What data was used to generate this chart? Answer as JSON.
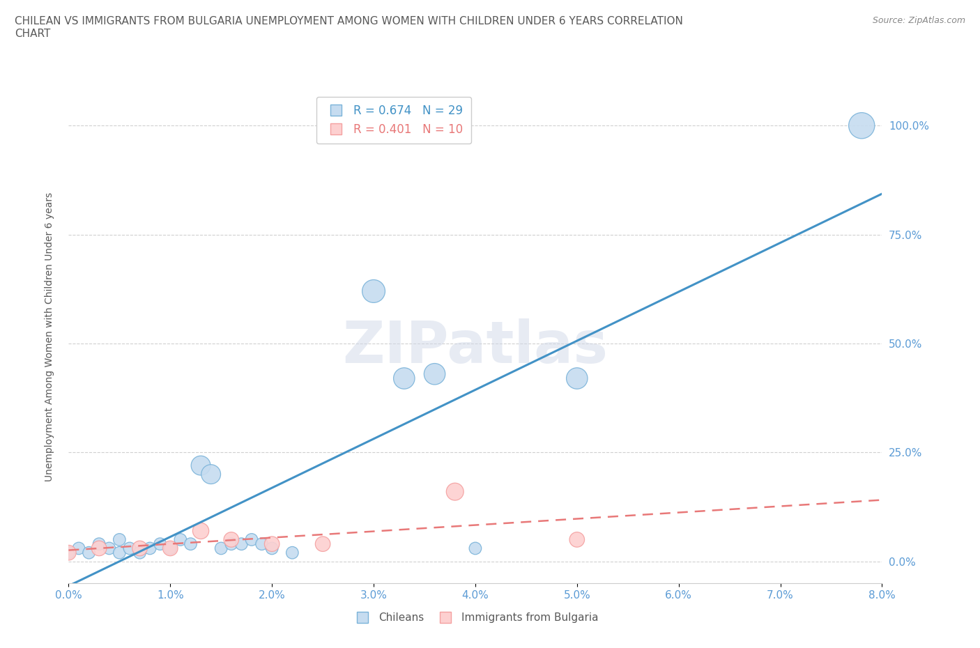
{
  "title": "CHILEAN VS IMMIGRANTS FROM BULGARIA UNEMPLOYMENT AMONG WOMEN WITH CHILDREN UNDER 6 YEARS CORRELATION\nCHART",
  "source": "Source: ZipAtlas.com",
  "xlim": [
    0.0,
    0.08
  ],
  "ylim": [
    -0.05,
    1.08
  ],
  "ylabel": "Unemployment Among Women with Children Under 6 years",
  "chileans_x": [
    0.0,
    0.001,
    0.002,
    0.003,
    0.004,
    0.005,
    0.005,
    0.006,
    0.007,
    0.008,
    0.009,
    0.01,
    0.011,
    0.012,
    0.013,
    0.014,
    0.015,
    0.016,
    0.017,
    0.018,
    0.019,
    0.02,
    0.022,
    0.03,
    0.033,
    0.036,
    0.04,
    0.05,
    0.078
  ],
  "chileans_y": [
    0.02,
    0.03,
    0.02,
    0.04,
    0.03,
    0.02,
    0.05,
    0.03,
    0.02,
    0.03,
    0.04,
    0.03,
    0.05,
    0.04,
    0.22,
    0.2,
    0.03,
    0.04,
    0.04,
    0.05,
    0.04,
    0.03,
    0.02,
    0.62,
    0.42,
    0.43,
    0.03,
    0.42,
    1.0
  ],
  "chileans_sizes": [
    40,
    40,
    40,
    40,
    40,
    40,
    40,
    40,
    40,
    40,
    40,
    40,
    40,
    40,
    100,
    100,
    40,
    40,
    40,
    40,
    40,
    40,
    40,
    140,
    120,
    120,
    40,
    120,
    180
  ],
  "bulgaria_x": [
    0.0,
    0.003,
    0.007,
    0.01,
    0.013,
    0.016,
    0.02,
    0.025,
    0.038,
    0.05
  ],
  "bulgaria_y": [
    0.02,
    0.03,
    0.03,
    0.03,
    0.07,
    0.05,
    0.04,
    0.04,
    0.16,
    0.05
  ],
  "bulgaria_sizes": [
    60,
    60,
    60,
    60,
    70,
    60,
    60,
    60,
    80,
    60
  ],
  "chilean_color": "#c6dcf0",
  "chilean_edge": "#7ab3d9",
  "chilean_line": "#4292c6",
  "bulgaria_color": "#fdd0d0",
  "bulgaria_edge": "#f4a0a0",
  "bulgaria_line": "#e87878",
  "legend_R_chileans": "R = 0.674",
  "legend_N_chileans": "N = 29",
  "legend_R_bulgaria": "R = 0.401",
  "legend_N_bulgaria": "N = 10",
  "watermark": "ZIPatlas",
  "watermark_color": "#d0d8e8",
  "tick_color": "#5b9bd5",
  "axis_label_color": "#595959",
  "title_color": "#595959",
  "grid_color": "#d0d0d0"
}
